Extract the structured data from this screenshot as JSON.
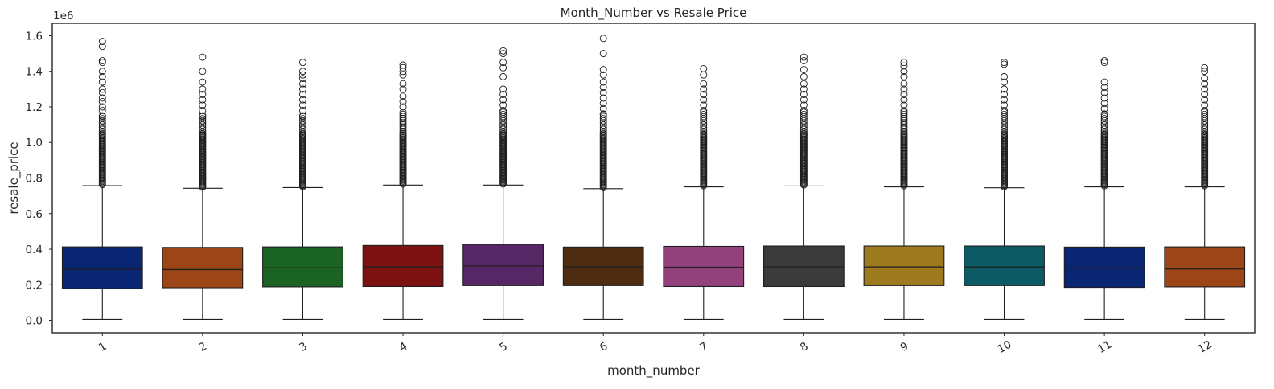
{
  "chart_data": {
    "type": "box",
    "title": "Month_Number vs Resale Price",
    "xlabel": "month_number",
    "ylabel": "resale_price",
    "offset_text": "1e6",
    "y_scale_factor": 1000000,
    "ylim": [
      -0.07,
      1.67
    ],
    "yticks": [
      0.0,
      0.2,
      0.4,
      0.6,
      0.8,
      1.0,
      1.2,
      1.4,
      1.6
    ],
    "ytick_labels": [
      "0.0",
      "0.2",
      "0.4",
      "0.6",
      "0.8",
      "1.0",
      "1.2",
      "1.4",
      "1.6"
    ],
    "categories": [
      "1",
      "2",
      "3",
      "4",
      "5",
      "6",
      "7",
      "8",
      "9",
      "10",
      "11",
      "12"
    ],
    "xtick_rotation_deg": -30,
    "grid": false,
    "boxes": [
      {
        "category": "1",
        "color": "#0a2673",
        "whisker_low": 0.005,
        "q1": 0.178,
        "median": 0.287,
        "q3": 0.413,
        "whisker_high": 0.757,
        "outlier_max": 1.568,
        "outliers_sample": [
          1.568,
          1.54,
          1.46,
          1.45,
          1.4,
          1.37,
          1.34,
          1.3,
          1.28,
          1.25,
          1.23,
          1.2,
          1.18,
          1.15
        ]
      },
      {
        "category": "2",
        "color": "#9c4517",
        "whisker_low": 0.005,
        "q1": 0.183,
        "median": 0.285,
        "q3": 0.41,
        "whisker_high": 0.742,
        "outlier_max": 1.48,
        "outliers_sample": [
          1.48,
          1.4,
          1.34,
          1.3,
          1.27,
          1.24,
          1.21,
          1.18,
          1.15
        ]
      },
      {
        "category": "3",
        "color": "#1b6323",
        "whisker_low": 0.005,
        "q1": 0.188,
        "median": 0.295,
        "q3": 0.413,
        "whisker_high": 0.746,
        "outlier_max": 1.45,
        "outliers_sample": [
          1.45,
          1.4,
          1.38,
          1.36,
          1.33,
          1.3,
          1.27,
          1.24,
          1.21,
          1.18,
          1.15
        ]
      },
      {
        "category": "4",
        "color": "#7d1212",
        "whisker_low": 0.005,
        "q1": 0.19,
        "median": 0.3,
        "q3": 0.421,
        "whisker_high": 0.76,
        "outlier_max": 1.435,
        "outliers_sample": [
          1.435,
          1.42,
          1.4,
          1.38,
          1.33,
          1.3,
          1.26,
          1.23,
          1.2,
          1.17
        ]
      },
      {
        "category": "5",
        "color": "#562765",
        "whisker_low": 0.005,
        "q1": 0.195,
        "median": 0.305,
        "q3": 0.427,
        "whisker_high": 0.76,
        "outlier_max": 1.515,
        "outliers_sample": [
          1.515,
          1.5,
          1.45,
          1.42,
          1.37,
          1.3,
          1.27,
          1.24,
          1.21,
          1.18
        ]
      },
      {
        "category": "6",
        "color": "#4d2c12",
        "whisker_low": 0.005,
        "q1": 0.195,
        "median": 0.3,
        "q3": 0.412,
        "whisker_high": 0.74,
        "outlier_max": 1.585,
        "outliers_sample": [
          1.585,
          1.5,
          1.41,
          1.38,
          1.34,
          1.31,
          1.28,
          1.25,
          1.22,
          1.19,
          1.16
        ]
      },
      {
        "category": "7",
        "color": "#93427d",
        "whisker_low": 0.005,
        "q1": 0.19,
        "median": 0.298,
        "q3": 0.416,
        "whisker_high": 0.75,
        "outlier_max": 1.415,
        "outliers_sample": [
          1.415,
          1.38,
          1.33,
          1.3,
          1.27,
          1.24,
          1.21,
          1.18
        ]
      },
      {
        "category": "8",
        "color": "#3b3b3b",
        "whisker_low": 0.005,
        "q1": 0.19,
        "median": 0.3,
        "q3": 0.418,
        "whisker_high": 0.755,
        "outlier_max": 1.48,
        "outliers_sample": [
          1.48,
          1.46,
          1.41,
          1.37,
          1.33,
          1.3,
          1.27,
          1.24,
          1.21,
          1.18
        ]
      },
      {
        "category": "9",
        "color": "#9e7a1f",
        "whisker_low": 0.005,
        "q1": 0.195,
        "median": 0.3,
        "q3": 0.418,
        "whisker_high": 0.75,
        "outlier_max": 1.45,
        "outliers_sample": [
          1.45,
          1.43,
          1.4,
          1.37,
          1.33,
          1.3,
          1.27,
          1.24,
          1.21,
          1.18
        ]
      },
      {
        "category": "10",
        "color": "#0c5a64",
        "whisker_low": 0.005,
        "q1": 0.195,
        "median": 0.3,
        "q3": 0.418,
        "whisker_high": 0.745,
        "outlier_max": 1.45,
        "outliers_sample": [
          1.45,
          1.44,
          1.37,
          1.34,
          1.3,
          1.27,
          1.24,
          1.21,
          1.18
        ]
      },
      {
        "category": "11",
        "color": "#0a2673",
        "whisker_low": 0.005,
        "q1": 0.185,
        "median": 0.292,
        "q3": 0.412,
        "whisker_high": 0.75,
        "outlier_max": 1.46,
        "outliers_sample": [
          1.46,
          1.45,
          1.34,
          1.31,
          1.28,
          1.25,
          1.22,
          1.19,
          1.16
        ]
      },
      {
        "category": "12",
        "color": "#9c4517",
        "whisker_low": 0.005,
        "q1": 0.188,
        "median": 0.288,
        "q3": 0.413,
        "whisker_high": 0.75,
        "outlier_max": 1.42,
        "outliers_sample": [
          1.42,
          1.4,
          1.36,
          1.33,
          1.3,
          1.27,
          1.24,
          1.21,
          1.18
        ]
      }
    ]
  }
}
